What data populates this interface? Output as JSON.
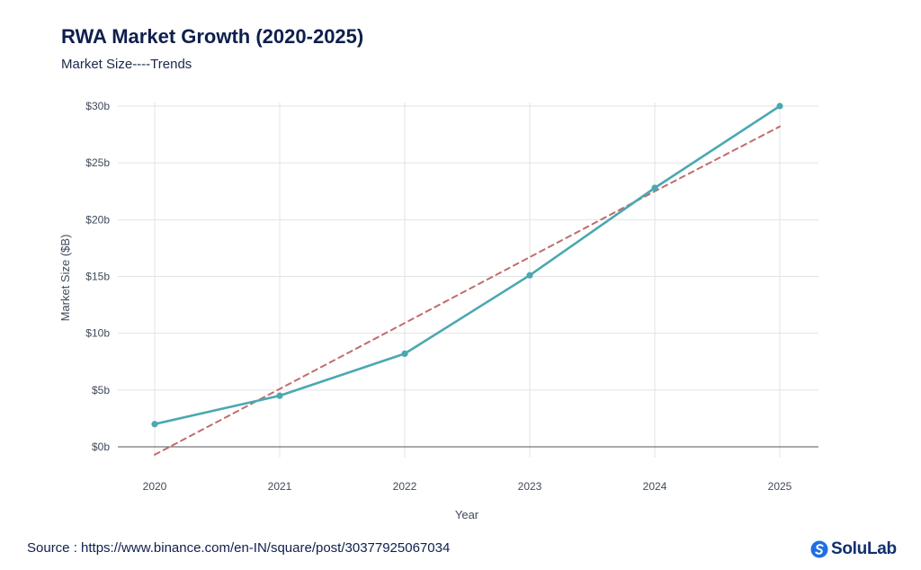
{
  "header": {
    "title": "RWA Market Growth (2020-2025)",
    "subtitle": "Market Size----Trends"
  },
  "footer": {
    "source": "Source : https://www.binance.com/en-IN/square/post/30377925067034",
    "brand_name": "SoluLab"
  },
  "colors": {
    "series_line": "#4aa8b1",
    "trend_line": "#c06c6c",
    "grid": "#e3e3e3",
    "zero_line": "#555555"
  },
  "chart_data": {
    "type": "line",
    "xlabel": "Year",
    "ylabel": "Market Size ($B)",
    "x": [
      2020,
      2021,
      2022,
      2023,
      2024,
      2025
    ],
    "ylim": [
      0,
      30
    ],
    "y_ticks": [
      0,
      5,
      10,
      15,
      20,
      25,
      30
    ],
    "y_tick_labels": [
      "$0b",
      "$5b",
      "$10b",
      "$15b",
      "$20b",
      "$25b",
      "$30b"
    ],
    "grid": true,
    "series": [
      {
        "values": [
          2.0,
          4.5,
          8.2,
          15.1,
          22.8,
          30.0
        ],
        "style": "solid",
        "markers": true
      },
      {
        "values": [
          -0.7,
          5.1,
          10.9,
          16.7,
          22.5,
          28.2
        ],
        "style": "dashed",
        "markers": false
      }
    ]
  }
}
